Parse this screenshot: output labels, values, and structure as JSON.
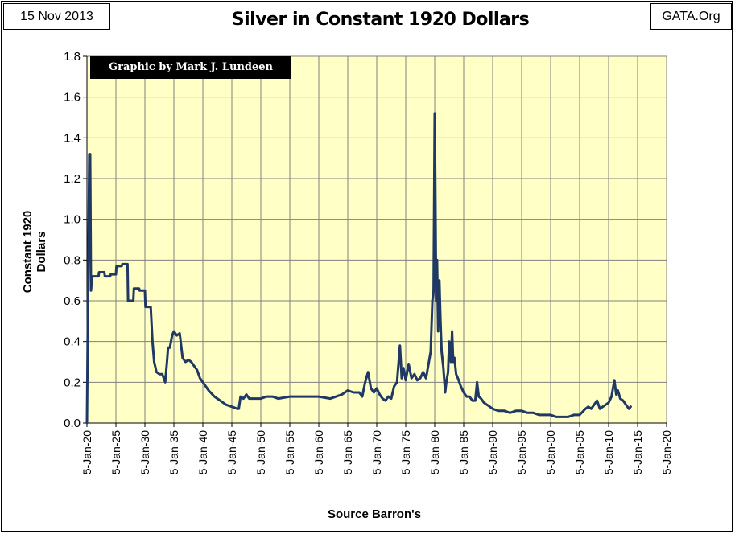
{
  "header": {
    "date": "15 Nov 2013",
    "site": "GATA.Org"
  },
  "chart_data": {
    "type": "line",
    "title": "Silver in Constant 1920 Dollars",
    "xlabel": "Source Barron's",
    "ylabel": "Constant 1920 Dollars",
    "annotation": "Graphic by Mark J. Lundeen",
    "xlim": [
      1920,
      2020
    ],
    "ylim": [
      0.0,
      1.8
    ],
    "yticks": [
      "0.0",
      "0.2",
      "0.4",
      "0.6",
      "0.8",
      "1.0",
      "1.2",
      "1.4",
      "1.6",
      "1.8"
    ],
    "ytick_values": [
      0.0,
      0.2,
      0.4,
      0.6,
      0.8,
      1.0,
      1.2,
      1.4,
      1.6,
      1.8
    ],
    "xticks": [
      "5-Jan-20",
      "5-Jan-25",
      "5-Jan-30",
      "5-Jan-35",
      "5-Jan-40",
      "5-Jan-45",
      "5-Jan-50",
      "5-Jan-55",
      "5-Jan-60",
      "5-Jan-65",
      "5-Jan-70",
      "5-Jan-75",
      "5-Jan-80",
      "5-Jan-85",
      "5-Jan-90",
      "5-Jan-95",
      "5-Jan-00",
      "5-Jan-05",
      "5-Jan-10",
      "5-Jan-15",
      "5-Jan-20"
    ],
    "xtick_values": [
      1920,
      1925,
      1930,
      1935,
      1940,
      1945,
      1950,
      1955,
      1960,
      1965,
      1970,
      1975,
      1980,
      1985,
      1990,
      1995,
      2000,
      2005,
      2010,
      2015,
      2020
    ],
    "grid": true,
    "colors": {
      "line": "#1f3864",
      "plot_bg": "#ffffc6",
      "grid": "#808080"
    },
    "series": [
      {
        "name": "Silver in Constant 1920 Dollars",
        "x": [
          1920.0,
          1920.4,
          1920.55,
          1920.7,
          1920.9,
          1921.0,
          1922.0,
          1922.1,
          1923.0,
          1923.1,
          1924.0,
          1924.1,
          1925.0,
          1925.1,
          1926.0,
          1926.1,
          1927.0,
          1927.1,
          1928.0,
          1928.1,
          1929.0,
          1929.1,
          1930.0,
          1930.1,
          1930.5,
          1931.0,
          1931.3,
          1931.6,
          1932.0,
          1932.5,
          1933.0,
          1933.5,
          1933.8,
          1934.0,
          1934.3,
          1934.7,
          1935.0,
          1935.5,
          1936.0,
          1936.5,
          1937.0,
          1937.5,
          1938.0,
          1938.5,
          1939.0,
          1939.5,
          1940.0,
          1941.0,
          1942.0,
          1943.0,
          1944.0,
          1945.0,
          1946.0,
          1946.2,
          1946.5,
          1947.0,
          1947.5,
          1948.0,
          1949.0,
          1950.0,
          1951.0,
          1952.0,
          1953.0,
          1955.0,
          1958.0,
          1960.0,
          1962.0,
          1963.0,
          1964.0,
          1965.0,
          1966.0,
          1967.0,
          1967.5,
          1968.0,
          1968.5,
          1969.0,
          1969.5,
          1970.0,
          1970.5,
          1971.0,
          1971.5,
          1972.0,
          1972.5,
          1973.0,
          1973.5,
          1974.0,
          1974.3,
          1974.6,
          1975.0,
          1975.5,
          1976.0,
          1976.5,
          1977.0,
          1977.5,
          1978.0,
          1978.5,
          1979.0,
          1979.3,
          1979.6,
          1979.8,
          1980.0,
          1980.1,
          1980.25,
          1980.4,
          1980.6,
          1980.8,
          1981.0,
          1981.2,
          1981.5,
          1981.8,
          1982.0,
          1982.3,
          1982.5,
          1982.8,
          1983.0,
          1983.2,
          1983.4,
          1983.7,
          1984.0,
          1984.5,
          1985.0,
          1985.5,
          1986.0,
          1986.5,
          1987.0,
          1987.3,
          1987.6,
          1988.0,
          1988.5,
          1989.0,
          1989.5,
          1990.0,
          1991.0,
          1992.0,
          1993.0,
          1994.0,
          1995.0,
          1996.0,
          1997.0,
          1998.0,
          1999.0,
          2000.0,
          2001.0,
          2002.0,
          2003.0,
          2004.0,
          2005.0,
          2006.0,
          2006.5,
          2007.0,
          2007.5,
          2008.0,
          2008.5,
          2009.0,
          2009.5,
          2010.0,
          2010.5,
          2011.0,
          2011.3,
          2011.6,
          2012.0,
          2012.5,
          2013.0,
          2013.5,
          2013.8
        ],
        "values": [
          0.0,
          1.32,
          1.32,
          0.65,
          0.72,
          0.72,
          0.72,
          0.74,
          0.74,
          0.72,
          0.72,
          0.73,
          0.73,
          0.77,
          0.77,
          0.78,
          0.78,
          0.6,
          0.6,
          0.66,
          0.66,
          0.65,
          0.65,
          0.57,
          0.57,
          0.57,
          0.4,
          0.3,
          0.25,
          0.24,
          0.24,
          0.2,
          0.3,
          0.37,
          0.37,
          0.43,
          0.45,
          0.43,
          0.44,
          0.32,
          0.3,
          0.31,
          0.3,
          0.28,
          0.26,
          0.22,
          0.2,
          0.16,
          0.13,
          0.11,
          0.09,
          0.08,
          0.07,
          0.07,
          0.13,
          0.12,
          0.14,
          0.12,
          0.12,
          0.12,
          0.13,
          0.13,
          0.12,
          0.13,
          0.13,
          0.13,
          0.12,
          0.13,
          0.14,
          0.16,
          0.15,
          0.15,
          0.13,
          0.2,
          0.25,
          0.17,
          0.15,
          0.17,
          0.14,
          0.12,
          0.11,
          0.13,
          0.12,
          0.18,
          0.2,
          0.38,
          0.22,
          0.27,
          0.21,
          0.29,
          0.22,
          0.24,
          0.21,
          0.22,
          0.25,
          0.22,
          0.3,
          0.35,
          0.6,
          0.65,
          1.52,
          1.2,
          0.6,
          0.8,
          0.45,
          0.7,
          0.5,
          0.35,
          0.27,
          0.15,
          0.2,
          0.25,
          0.4,
          0.3,
          0.45,
          0.3,
          0.32,
          0.24,
          0.22,
          0.18,
          0.15,
          0.13,
          0.13,
          0.11,
          0.11,
          0.2,
          0.13,
          0.12,
          0.1,
          0.09,
          0.08,
          0.07,
          0.06,
          0.06,
          0.05,
          0.06,
          0.06,
          0.05,
          0.05,
          0.04,
          0.04,
          0.04,
          0.03,
          0.03,
          0.03,
          0.04,
          0.04,
          0.07,
          0.08,
          0.07,
          0.09,
          0.11,
          0.07,
          0.08,
          0.09,
          0.1,
          0.13,
          0.21,
          0.14,
          0.16,
          0.12,
          0.11,
          0.09,
          0.07,
          0.08
        ]
      }
    ]
  }
}
